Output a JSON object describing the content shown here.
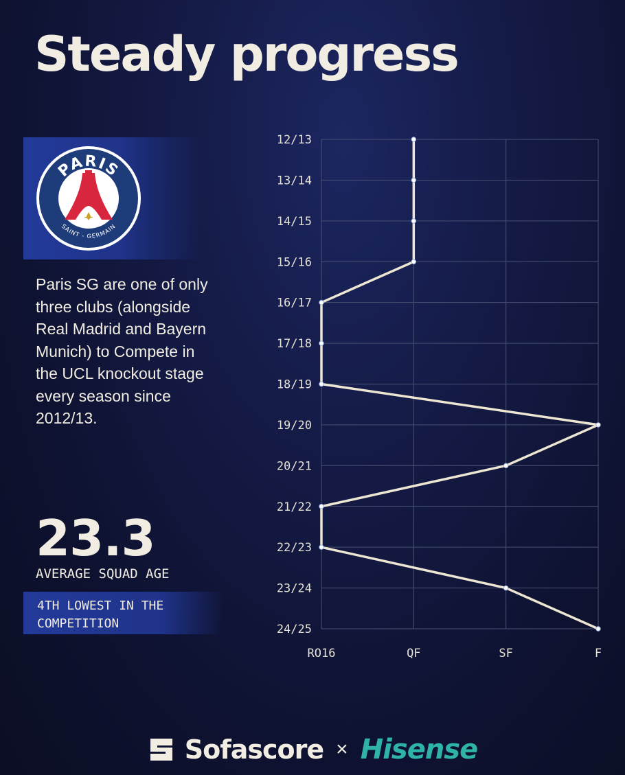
{
  "title": "Steady progress",
  "club": {
    "logo_top_text": "PARIS",
    "logo_bottom_text": "SAINT - GERMAIN",
    "logo_colors": {
      "navy": "#1f3c7a",
      "red": "#d7263d",
      "white": "#ffffff",
      "gold": "#c9a227"
    }
  },
  "description": "Paris SG are one of only three clubs (alongside Real Madrid and Bayern Munich) to Compete in the UCL knockout stage every season since 2012/13.",
  "stat": {
    "value": "23.3",
    "label": "AVERAGE SQUAD AGE",
    "note": "4TH LOWEST IN THE COMPETITION"
  },
  "chart_data": {
    "type": "line",
    "orientation": "vertical",
    "x_categories": [
      "RO16",
      "QF",
      "SF",
      "F"
    ],
    "seasons": [
      "12/13",
      "13/14",
      "14/15",
      "15/16",
      "16/17",
      "17/18",
      "18/19",
      "19/20",
      "20/21",
      "21/22",
      "22/23",
      "23/24",
      "24/25"
    ],
    "stages": [
      "QF",
      "QF",
      "QF",
      "QF",
      "RO16",
      "RO16",
      "RO16",
      "F",
      "SF",
      "RO16",
      "RO16",
      "SF",
      "F"
    ],
    "grid": true,
    "colors": {
      "line": "#ece6d2",
      "grid": "#4a5275",
      "tick": "#e6e2d6"
    }
  },
  "footer": {
    "brand1": "Sofascore",
    "separator": "×",
    "brand2": "Hisense",
    "colors": {
      "brand2": "#2fb3a6"
    }
  }
}
